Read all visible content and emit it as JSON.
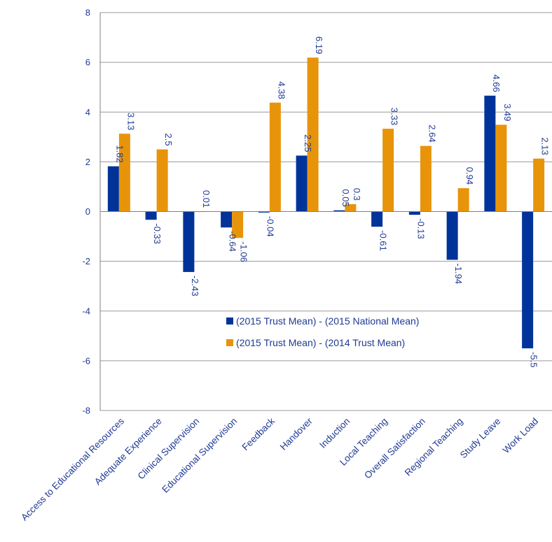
{
  "chart_data": {
    "type": "bar",
    "title": "",
    "xlabel": "",
    "ylabel": "",
    "ylim": [
      -8,
      8
    ],
    "yticks": [
      -8,
      -6,
      -4,
      -2,
      0,
      2,
      4,
      6,
      8
    ],
    "grid": "horizontal",
    "legend_position": "center",
    "categories": [
      "Access to Educational Resources",
      "Adequate Experience",
      "Clinical Supervision",
      "Educational Supervision",
      "Feedback",
      "Handover",
      "Induction",
      "Local Teaching",
      "Overall Satisfaction",
      "Regional Teaching",
      "Study Leave",
      "Work Load"
    ],
    "series": [
      {
        "name": "(2015 Trust Mean) - (2015 National Mean)",
        "color": "#003399",
        "values": [
          1.82,
          -0.33,
          -2.43,
          -0.64,
          -0.04,
          2.25,
          0.05,
          -0.61,
          -0.13,
          -1.94,
          4.66,
          -5.5
        ],
        "labels": [
          "1.82",
          "-0.33",
          "-2.43",
          "-0.64",
          "-0.04",
          "2.25",
          "0.05",
          "-0.61",
          "-0.13",
          "-1.94",
          "4.66",
          "-5.5"
        ]
      },
      {
        "name": "(2015 Trust Mean) - (2014 Trust Mean)",
        "color": "#e8940a",
        "values": [
          3.13,
          2.5,
          0.01,
          -1.06,
          4.38,
          6.19,
          0.3,
          3.33,
          2.64,
          0.94,
          3.49,
          2.13
        ],
        "labels": [
          "3.13",
          "2.5",
          "0.01",
          "-1.06",
          "4.38",
          "6.19",
          "0.3",
          "3.33",
          "2.64",
          "0.94",
          "3.49",
          "2.13"
        ]
      }
    ],
    "colors": {
      "axis": "#808080",
      "grid": "#9a9a9a",
      "text": "#1f3a93"
    }
  }
}
